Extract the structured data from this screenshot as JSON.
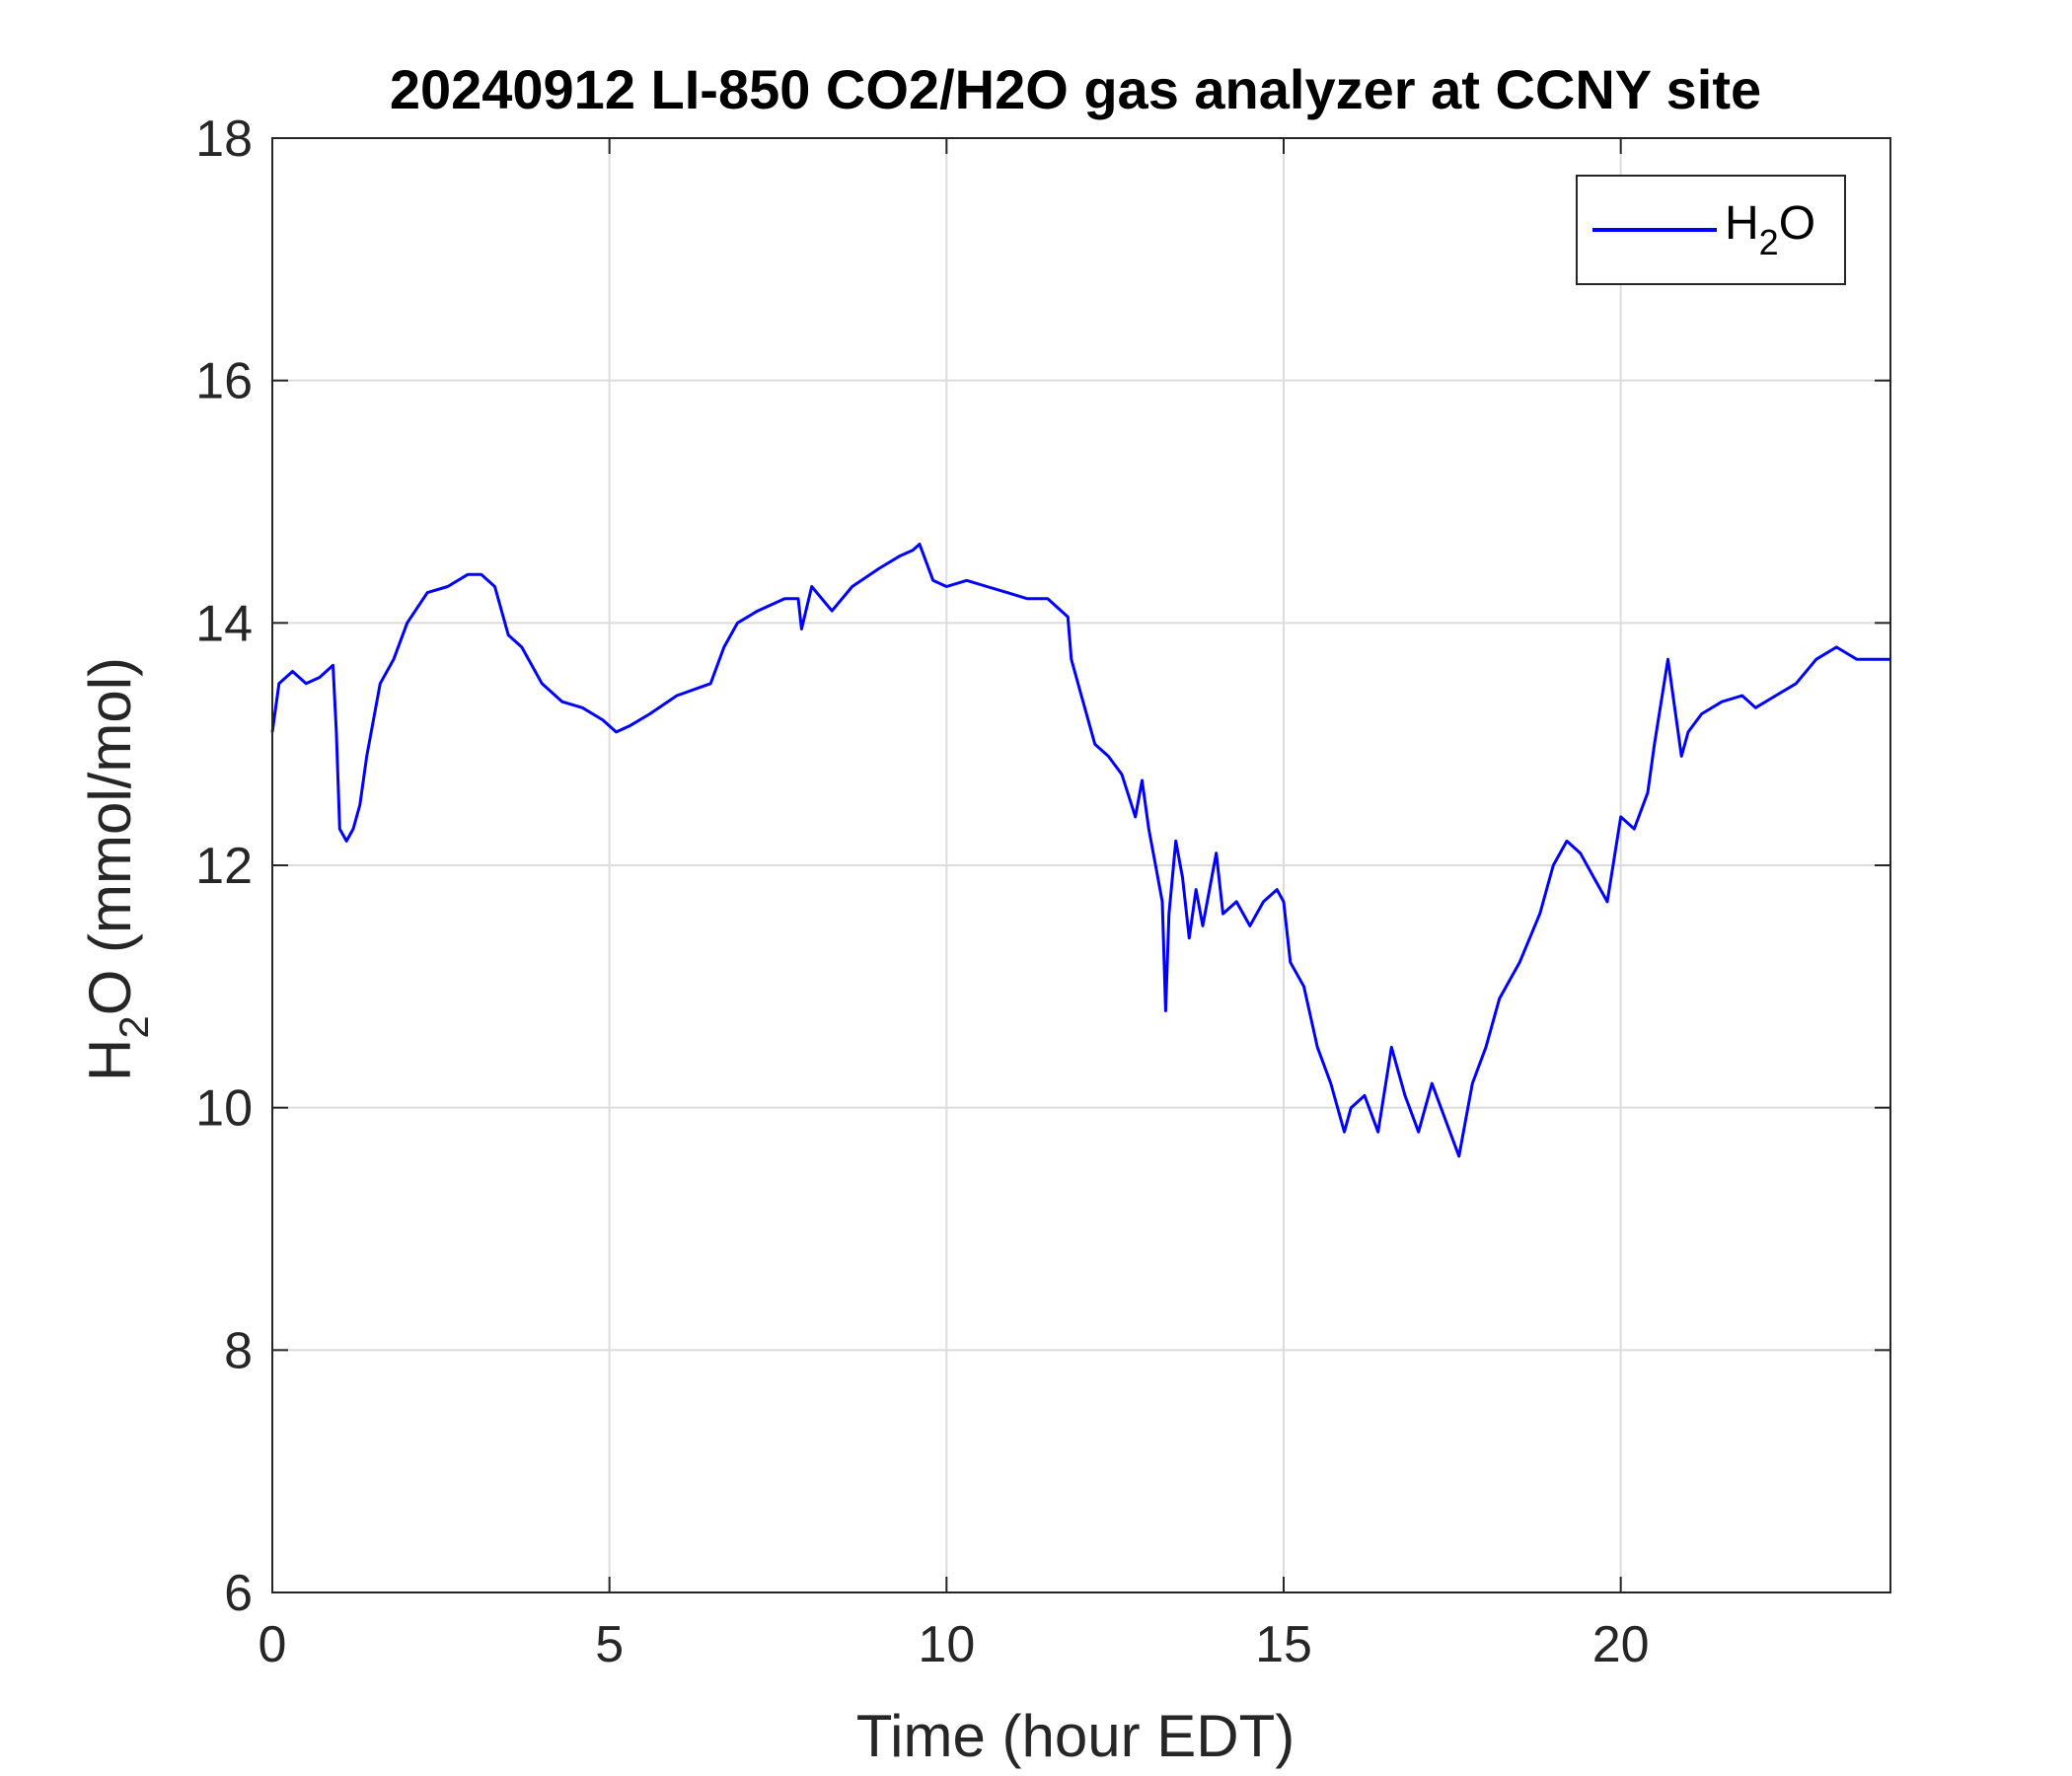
{
  "colors": {
    "series": "#0000ff",
    "axis": "#262626",
    "grid": "#dcdcdc",
    "background": "#ffffff"
  },
  "chart_data": {
    "type": "line",
    "title": "20240912 LI-850 CO2/H2O gas analyzer at CCNY site",
    "xlabel": "Time (hour EDT)",
    "ylabel": {
      "main": "H",
      "sub": "2",
      "rest": "O (mmol/mol)"
    },
    "xlim": [
      0,
      24
    ],
    "ylim": [
      6,
      18
    ],
    "xticks": [
      0,
      5,
      10,
      15,
      20
    ],
    "yticks": [
      6,
      8,
      10,
      12,
      14,
      16,
      18
    ],
    "grid": true,
    "legend": {
      "placement": "top-right",
      "entries": [
        {
          "main": "H",
          "sub": "2",
          "rest": "O"
        }
      ]
    },
    "series": [
      {
        "color": "#0000ff",
        "x": [
          0,
          0.1,
          0.3,
          0.5,
          0.7,
          0.9,
          0.95,
          1.0,
          1.1,
          1.2,
          1.3,
          1.4,
          1.5,
          1.6,
          1.8,
          2.0,
          2.3,
          2.6,
          2.9,
          3.1,
          3.3,
          3.5,
          3.7,
          4.0,
          4.3,
          4.6,
          4.9,
          5.1,
          5.3,
          5.6,
          6.0,
          6.5,
          6.7,
          6.9,
          7.2,
          7.6,
          7.8,
          7.85,
          8.0,
          8.3,
          8.6,
          9.0,
          9.3,
          9.5,
          9.6,
          9.8,
          10.0,
          10.3,
          10.6,
          10.9,
          11.2,
          11.5,
          11.8,
          11.85,
          12.0,
          12.2,
          12.4,
          12.6,
          12.8,
          12.9,
          13.0,
          13.1,
          13.2,
          13.25,
          13.3,
          13.4,
          13.5,
          13.6,
          13.7,
          13.8,
          14.0,
          14.1,
          14.3,
          14.5,
          14.7,
          14.9,
          15.0,
          15.1,
          15.3,
          15.5,
          15.7,
          15.9,
          16.0,
          16.2,
          16.4,
          16.6,
          16.8,
          17.0,
          17.2,
          17.4,
          17.6,
          17.8,
          18.0,
          18.2,
          18.5,
          18.8,
          19.0,
          19.2,
          19.4,
          19.6,
          19.8,
          20.0,
          20.2,
          20.4,
          20.5,
          20.7,
          20.9,
          21.0,
          21.2,
          21.5,
          21.8,
          22.0,
          22.3,
          22.6,
          22.9,
          23.2,
          23.5,
          24.0
        ],
        "values": [
          13.1,
          13.5,
          13.6,
          13.5,
          13.55,
          13.65,
          13.1,
          12.3,
          12.2,
          12.3,
          12.5,
          12.9,
          13.2,
          13.5,
          13.7,
          14.0,
          14.25,
          14.3,
          14.4,
          14.4,
          14.3,
          13.9,
          13.8,
          13.5,
          13.35,
          13.3,
          13.2,
          13.1,
          13.15,
          13.25,
          13.4,
          13.5,
          13.8,
          14.0,
          14.1,
          14.2,
          14.2,
          13.95,
          14.3,
          14.1,
          14.3,
          14.45,
          14.55,
          14.6,
          14.65,
          14.35,
          14.3,
          14.35,
          14.3,
          14.25,
          14.2,
          14.2,
          14.05,
          13.7,
          13.4,
          13.0,
          12.9,
          12.75,
          12.4,
          12.7,
          12.3,
          12.0,
          11.7,
          10.8,
          11.6,
          12.2,
          11.9,
          11.4,
          11.8,
          11.5,
          12.1,
          11.6,
          11.7,
          11.5,
          11.7,
          11.8,
          11.7,
          11.2,
          11.0,
          10.5,
          10.2,
          9.8,
          10.0,
          10.1,
          9.8,
          10.5,
          10.1,
          9.8,
          10.2,
          9.9,
          9.6,
          10.2,
          10.5,
          10.9,
          11.2,
          11.6,
          12.0,
          12.2,
          12.1,
          11.9,
          11.7,
          12.4,
          12.3,
          12.6,
          13.0,
          13.7,
          12.9,
          13.1,
          13.25,
          13.35,
          13.4,
          13.3,
          13.4,
          13.5,
          13.7,
          13.8,
          13.7,
          13.7
        ]
      }
    ]
  }
}
